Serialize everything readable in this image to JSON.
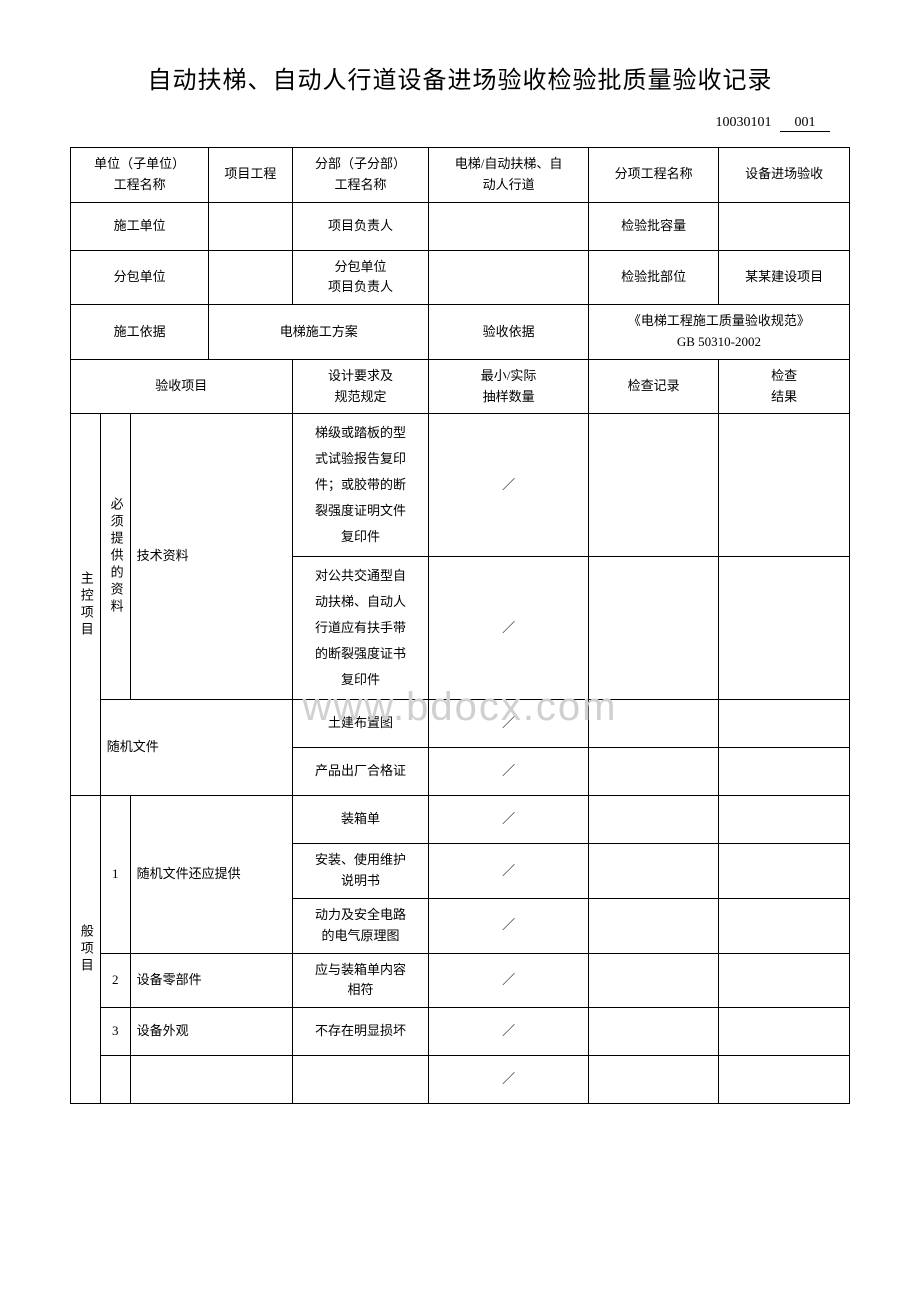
{
  "title": "自动扶梯、自动人行道设备进场验收检验批质量验收记录",
  "doc_code": "10030101",
  "doc_seq": "001",
  "watermark": "www.bdocx.com",
  "header_row1": {
    "c1": "单位（子单位）\n工程名称",
    "c2": "项目工程",
    "c3": "分部（子分部）\n工程名称",
    "c4": "电梯/自动扶梯、自\n动人行道",
    "c5": "分项工程名称",
    "c6": "设备进场验收"
  },
  "header_row2": {
    "c1": "施工单位",
    "c2": "",
    "c3": "项目负责人",
    "c4": "",
    "c5": "检验批容量",
    "c6": ""
  },
  "header_row3": {
    "c1": "分包单位",
    "c2": "",
    "c3": "分包单位\n项目负责人",
    "c4": "",
    "c5": "检验批部位",
    "c6": "某某建设项目"
  },
  "header_row4": {
    "c1": "施工依据",
    "c2": "电梯施工方案",
    "c3": "验收依据",
    "c4": "《电梯工程施工质量验收规范》\nGB 50310-2002"
  },
  "header_row5": {
    "c1": "验收项目",
    "c2": "设计要求及\n规范规定",
    "c3": "最小/实际\n抽样数量",
    "c4": "检查记录",
    "c5": "检查\n结果"
  },
  "section1_label": "主控项目",
  "section2_label": "般项目",
  "group1_label": "必须提供的资料",
  "rows": {
    "r1_name": "技术资料",
    "r1_req1": "梯级或踏板的型\n式试验报告复印\n件；或胶带的断\n裂强度证明文件\n复印件",
    "r1_qty1": "／",
    "r1_req2": "对公共交通型自\n动扶梯、自动人\n行道应有扶手带\n的断裂强度证书\n复印件",
    "r1_qty2": "／",
    "r2_name": "随机文件",
    "r2_req1": "土建布置图",
    "r2_qty1": "／",
    "r2_req2": "产品出厂合格证",
    "r2_qty2": "／",
    "r3_num": "1",
    "r3_name": "随机文件还应提供",
    "r3_req1": "装箱单",
    "r3_qty1": "／",
    "r3_req2": "安装、使用维护\n说明书",
    "r3_qty2": "／",
    "r3_req3": "动力及安全电路\n的电气原理图",
    "r3_qty3": "／",
    "r4_num": "2",
    "r4_name": "设备零部件",
    "r4_req": "应与装箱单内容\n相符",
    "r4_qty": "／",
    "r5_num": "3",
    "r5_name": "设备外观",
    "r5_req": "不存在明显损坏",
    "r5_qty": "／",
    "r6_qty": "／"
  }
}
